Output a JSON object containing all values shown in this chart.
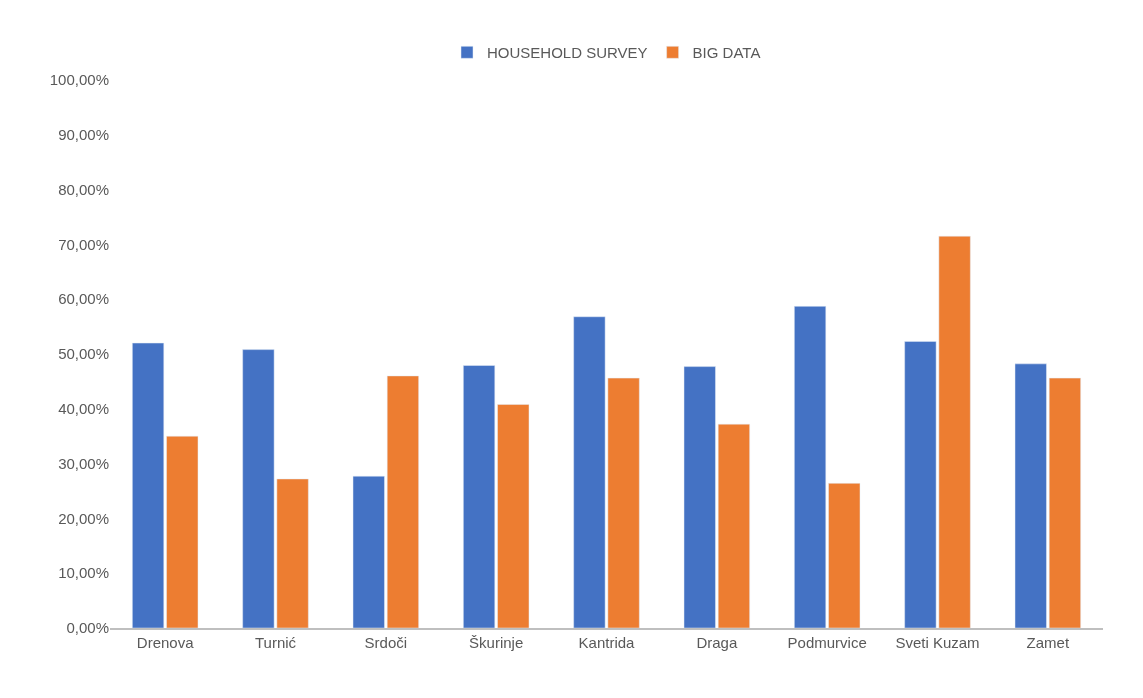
{
  "chart_data": {
    "type": "bar",
    "categories": [
      "Drenova",
      "Turnić",
      "Srdoči",
      "Škurinje",
      "Kantrida",
      "Draga",
      "Podmurvice",
      "Sveti Kuzam",
      "Zamet"
    ],
    "series": [
      {
        "name": "HOUSEHOLD SURVEY",
        "color": "#4472c4",
        "values": [
          52.0,
          50.8,
          27.7,
          47.9,
          56.8,
          47.7,
          58.7,
          52.3,
          48.2
        ]
      },
      {
        "name": "BIG DATA",
        "color": "#ed7d31",
        "values": [
          35.0,
          27.2,
          46.0,
          40.8,
          45.6,
          37.2,
          26.4,
          71.5,
          45.6
        ]
      }
    ],
    "ylim": [
      0,
      100
    ],
    "yticks": [
      {
        "value": 0,
        "label": "0,00%"
      },
      {
        "value": 10,
        "label": "10,00%"
      },
      {
        "value": 20,
        "label": "20,00%"
      },
      {
        "value": 30,
        "label": "30,00%"
      },
      {
        "value": 40,
        "label": "40,00%"
      },
      {
        "value": 50,
        "label": "50,00%"
      },
      {
        "value": 60,
        "label": "60,00%"
      },
      {
        "value": 70,
        "label": "70,00%"
      },
      {
        "value": 80,
        "label": "80,00%"
      },
      {
        "value": 90,
        "label": "90,00%"
      },
      {
        "value": 100,
        "label": "100,00%"
      }
    ],
    "grid": false,
    "legend": "top"
  }
}
